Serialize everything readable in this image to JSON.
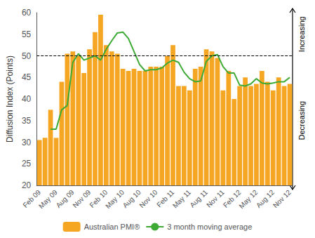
{
  "chart_data": {
    "type": "bar",
    "categories": [
      "Feb 09",
      null,
      null,
      "May 09",
      null,
      null,
      "Aug 09",
      null,
      null,
      "Nov 09",
      null,
      null,
      "Feb 10",
      null,
      null,
      "May 10",
      null,
      null,
      "Aug 10",
      null,
      null,
      "Nov 10",
      null,
      null,
      "Feb 11",
      null,
      null,
      "May 11",
      null,
      null,
      "Aug 11",
      null,
      null,
      "Nov 11",
      null,
      null,
      "Feb 12",
      null,
      null,
      "May 12",
      null,
      null,
      "Aug 12",
      null,
      null,
      "Nov 12"
    ],
    "series": [
      {
        "name": "Australian PMI®",
        "type": "bar",
        "color": "#F5A623",
        "values": [
          30.5,
          31.0,
          37.5,
          31.0,
          44.0,
          50.5,
          51.0,
          50.0,
          46.0,
          51.5,
          55.5,
          59.5,
          52.5,
          51.0,
          50.5,
          47.0,
          46.5,
          47.0,
          46.5,
          46.5,
          47.5,
          47.5,
          47.5,
          50.0,
          52.5,
          43.0,
          43.0,
          42.0,
          47.0,
          47.5,
          51.5,
          51.0,
          49.5,
          42.0,
          46.5,
          40.0,
          43.0,
          45.0,
          43.0,
          43.5,
          46.5,
          44.0,
          42.0,
          45.0,
          43.0,
          43.5
        ]
      },
      {
        "name": "3 month moving average",
        "type": "line",
        "color": "#3DAA35",
        "values": [
          null,
          null,
          33.0,
          33.0,
          37.5,
          38.5,
          48.5,
          50.5,
          49.0,
          49.5,
          50.0,
          49.0,
          51.5,
          53.5,
          55.3,
          55.5,
          54.0,
          51.0,
          48.0,
          46.5,
          46.8,
          46.8,
          47.2,
          48.3,
          49.0,
          48.5,
          46.2,
          44.7,
          44.0,
          44.2,
          48.7,
          50.0,
          50.3,
          47.5,
          46.0,
          46.0,
          43.2,
          43.0,
          43.5,
          44.7,
          43.7,
          43.5,
          43.7,
          44.0,
          44.0,
          45.0
        ]
      }
    ],
    "ylabel": "Diffusion Index (Points)",
    "ylim": [
      20,
      60
    ],
    "yticks": [
      20,
      25,
      30,
      35,
      40,
      45,
      50,
      55,
      60
    ],
    "reference_lines": [
      {
        "y": 50,
        "line_style": "dashed",
        "color": "#000000"
      }
    ],
    "annotations": [
      {
        "text": "Increasing"
      },
      {
        "text": "Decreasing"
      }
    ],
    "grid": false,
    "legend": "bottom"
  }
}
